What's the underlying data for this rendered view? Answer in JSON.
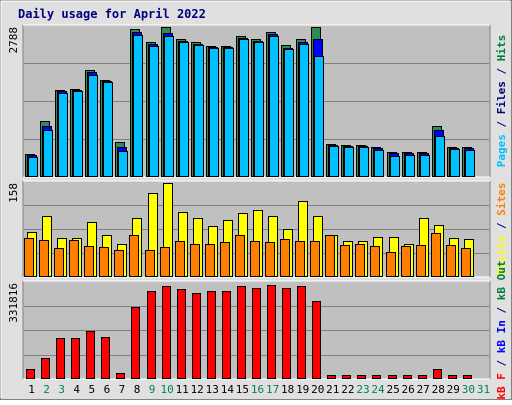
{
  "chart_data": {
    "type": "bar",
    "title": "Daily usage for April 2022",
    "x": [
      "1",
      "2",
      "3",
      "4",
      "5",
      "6",
      "7",
      "8",
      "9",
      "10",
      "11",
      "12",
      "13",
      "14",
      "15",
      "16",
      "17",
      "18",
      "19",
      "20",
      "21",
      "22",
      "23",
      "24",
      "25",
      "26",
      "27",
      "28",
      "29",
      "30",
      "31"
    ],
    "weekend_days": [
      "2",
      "3",
      "9",
      "10",
      "16",
      "17",
      "23",
      "24",
      "30",
      "31"
    ],
    "panels": [
      {
        "id": "pfh",
        "max_label": "2788",
        "ymax": 2788,
        "side_labels": [
          {
            "text": "Pages",
            "color": "#00c0ff"
          },
          {
            "text": " / ",
            "color": "#000080"
          },
          {
            "text": "Files",
            "color": "#000080"
          },
          {
            "text": " / ",
            "color": "#000080"
          },
          {
            "text": "Hits",
            "color": "#008040"
          }
        ],
        "series": [
          {
            "name": "Hits",
            "color": "#2e8b57",
            "values": [
              420,
              1050,
              1620,
              1640,
              1990,
              1810,
              650,
              2750,
              2500,
              2788,
              2560,
              2500,
              2440,
              2440,
              2620,
              2560,
              2700,
              2450,
              2560,
              2788,
              620,
              600,
              600,
              560,
              470,
              460,
              460,
              950,
              560,
              550,
              null
            ]
          },
          {
            "name": "Files",
            "color": "#0000ff",
            "values": [
              400,
              950,
              1590,
              1610,
              1950,
              1780,
              560,
              2700,
              2470,
              2680,
              2530,
              2470,
              2420,
              2420,
              2590,
              2530,
              2660,
              2400,
              2510,
              2560,
              600,
              580,
              580,
              540,
              450,
              440,
              440,
              880,
              540,
              530,
              null
            ]
          },
          {
            "name": "Pages",
            "color": "#00c0ff",
            "values": [
              380,
              880,
              1560,
              1590,
              1890,
              1760,
              480,
              2640,
              2440,
              2630,
              2510,
              2450,
              2400,
              2400,
              2560,
              2500,
              2630,
              2380,
              2480,
              2250,
              580,
              560,
              560,
              500,
              390,
              400,
              400,
              770,
              520,
              500,
              null
            ]
          }
        ]
      },
      {
        "id": "vs",
        "max_label": "158",
        "ymax": 158,
        "side_labels": [
          {
            "text": "Visits",
            "color": "#ffff00"
          },
          {
            "text": " / ",
            "color": "#000080"
          },
          {
            "text": "Sites",
            "color": "#ff8000"
          }
        ],
        "series": [
          {
            "name": "Visits",
            "color": "#ffff00",
            "values": [
              75,
              102,
              65,
              65,
              92,
              70,
              55,
              100,
              142,
              158,
              110,
              100,
              85,
              95,
              108,
              112,
              103,
              80,
              128,
              103,
              70,
              60,
              60,
              68,
              68,
              56,
              100,
              87,
              65,
              64,
              null
            ]
          },
          {
            "name": "Sites",
            "color": "#ff8000",
            "values": [
              65,
              62,
              48,
              62,
              52,
              50,
              45,
              70,
              45,
              50,
              60,
              56,
              55,
              58,
              70,
              60,
              58,
              64,
              60,
              60,
              70,
              54,
              55,
              52,
              42,
              52,
              54,
              74,
              54,
              49,
              null
            ]
          }
        ]
      },
      {
        "id": "kb",
        "max_label": "331816",
        "ymax": 331816,
        "side_labels": [
          {
            "text": "kB F",
            "color": "#ff0000"
          },
          {
            "text": " / ",
            "color": "#000080"
          },
          {
            "text": "kB In",
            "color": "#0000ff"
          },
          {
            "text": " / ",
            "color": "#000080"
          },
          {
            "text": "kB Out",
            "color": "#008040"
          }
        ],
        "series": [
          {
            "name": "kB F",
            "color": "#ff0000",
            "values": [
              33000,
              72000,
              140000,
              140000,
              166000,
              144000,
              20000,
              250000,
              305000,
              322000,
              310000,
              298000,
              305000,
              305000,
              320000,
              316000,
              326000,
              313000,
              322000,
              268000,
              13000,
              13000,
              13000,
              13000,
              13000,
              13000,
              13000,
              33000,
              13000,
              13000,
              null
            ]
          }
        ]
      }
    ]
  }
}
